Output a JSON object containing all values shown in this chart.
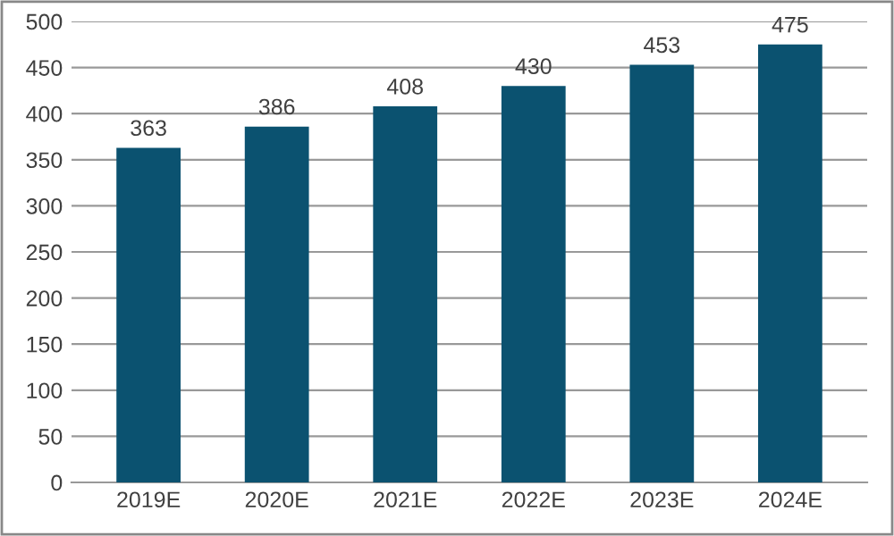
{
  "chart_data": {
    "type": "bar",
    "categories": [
      "2019E",
      "2020E",
      "2021E",
      "2022E",
      "2023E",
      "2024E"
    ],
    "values": [
      363,
      386,
      408,
      430,
      453,
      475
    ],
    "color": "#0b5270",
    "ylim": [
      0,
      500
    ],
    "yticks": [
      0,
      50,
      100,
      150,
      200,
      250,
      300,
      350,
      400,
      450,
      500
    ],
    "grid": "y",
    "data_labels": true
  }
}
